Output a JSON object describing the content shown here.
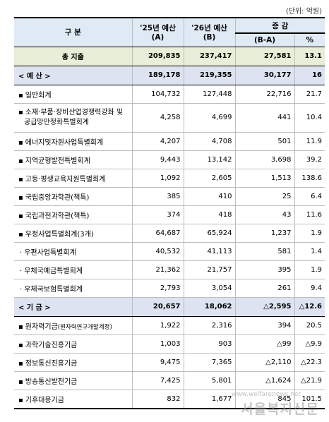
{
  "unit_note": "(단위: 억원)",
  "header": {
    "col_name": "구 분",
    "col_a_line1": "'25년 예산",
    "col_a_line2": "(A)",
    "col_b_line1": "'26년 예산",
    "col_b_line2": "(B)",
    "col_change": "증 감",
    "col_diff": "(B-A)",
    "col_pct": "%"
  },
  "total": {
    "name": "총 지출",
    "a": "209,835",
    "b": "237,417",
    "diff": "27,581",
    "pct": "13.1"
  },
  "budget": {
    "group": {
      "name": "< 예 산 >",
      "a": "189,178",
      "b": "219,355",
      "diff": "30,177",
      "pct": "16"
    },
    "items": [
      {
        "bullet": "▪",
        "name": "일반회계",
        "a": "104,732",
        "b": "127,448",
        "diff": "22,716",
        "pct": "21.7"
      },
      {
        "bullet": "▪",
        "name": "소재·부품·장비산업경쟁력강화 및",
        "name2": "공급망안정화특별회계",
        "a": "4,258",
        "b": "4,699",
        "diff": "441",
        "pct": "10.4"
      },
      {
        "bullet": "▪",
        "name": "에너지및자원사업특별회계",
        "a": "4,207",
        "b": "4,708",
        "diff": "501",
        "pct": "11.9"
      },
      {
        "bullet": "▪",
        "name": "지역균형발전특별회계",
        "a": "9,443",
        "b": "13,142",
        "diff": "3,698",
        "pct": "39.2"
      },
      {
        "bullet": "▪",
        "name": "고등·평생교육지원특별회계",
        "a": "1,092",
        "b": "2,605",
        "diff": "1,513",
        "pct": "138.6"
      },
      {
        "bullet": "▪",
        "name": "국립중앙과학관(책특)",
        "a": "385",
        "b": "410",
        "diff": "25",
        "pct": "6.4"
      },
      {
        "bullet": "▪",
        "name": "국립과천과학관(책특)",
        "a": "374",
        "b": "418",
        "diff": "43",
        "pct": "11.6"
      },
      {
        "bullet": "▪",
        "name": "우정사업특별회계(3개)",
        "a": "64,687",
        "b": "65,924",
        "diff": "1,237",
        "pct": "1.9"
      },
      {
        "bullet": "·",
        "name": "우편사업특별회계",
        "a": "40,532",
        "b": "41,113",
        "diff": "581",
        "pct": "1.4"
      },
      {
        "bullet": "·",
        "name": "우체국예금특별회계",
        "a": "21,362",
        "b": "21,757",
        "diff": "395",
        "pct": "1.9"
      },
      {
        "bullet": "·",
        "name": "우체국보험특별회계",
        "a": "2,793",
        "b": "3,054",
        "diff": "261",
        "pct": "9.4"
      }
    ]
  },
  "fund": {
    "group": {
      "name": "< 기 금 >",
      "a": "20,657",
      "b": "18,062",
      "diff": "△2,595",
      "pct": "△12.6"
    },
    "items": [
      {
        "bullet": "▪",
        "name": "원자력기금",
        "name_small": "(원자력연구개발계정)",
        "a": "1,922",
        "b": "2,316",
        "diff": "394",
        "pct": "20.5"
      },
      {
        "bullet": "▪",
        "name": "과학기술진흥기금",
        "a": "1,003",
        "b": "903",
        "diff": "△99",
        "pct": "△9.9"
      },
      {
        "bullet": "▪",
        "name": "정보통신진흥기금",
        "a": "9,475",
        "b": "7,365",
        "diff": "△2,110",
        "pct": "△22.3"
      },
      {
        "bullet": "▪",
        "name": "방송통신발전기금",
        "a": "7,425",
        "b": "5,801",
        "diff": "△1,624",
        "pct": "△21.9"
      },
      {
        "bullet": "▪",
        "name": "기후대응기금",
        "a": "832",
        "b": "1,677",
        "diff": "845",
        "pct": "101.5"
      }
    ]
  },
  "watermark": "서울복지신문",
  "watermark_small": "www.welfarenews.net"
}
